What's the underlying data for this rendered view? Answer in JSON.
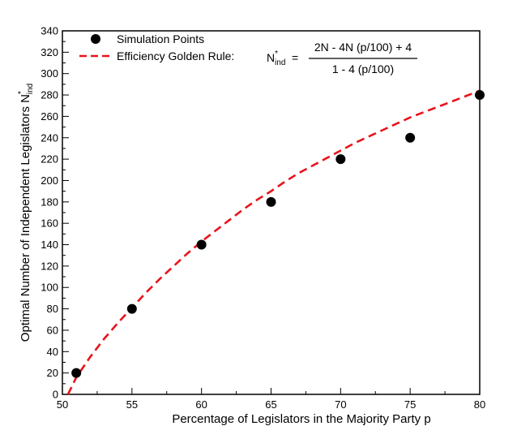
{
  "chart_data": {
    "type": "scatter",
    "xlabel": "Percentage of Legislators in the Majority Party p",
    "ylabel_main": "Optimal Number of Independent Legislators N",
    "ylabel_sup": "*",
    "ylabel_sub": "ind",
    "xlim": [
      50,
      80
    ],
    "ylim": [
      0,
      340
    ],
    "xticks": [
      50,
      55,
      60,
      65,
      70,
      75,
      80
    ],
    "yticks": [
      0,
      20,
      40,
      60,
      80,
      100,
      120,
      140,
      160,
      180,
      200,
      220,
      240,
      260,
      280,
      300,
      320,
      340
    ],
    "grid": false,
    "legend_position": "top-left",
    "series": [
      {
        "name": "Simulation Points",
        "kind": "scatter",
        "color": "#000000",
        "x": [
          51,
          55,
          60,
          65,
          70,
          75,
          80
        ],
        "y": [
          20,
          80,
          140,
          180,
          220,
          240,
          280
        ]
      },
      {
        "name": "Efficiency Golden Rule:",
        "kind": "line",
        "style": "dashed",
        "color": "#e8141c",
        "x": [
          50.4,
          51,
          52,
          53,
          54,
          55,
          56,
          57,
          58,
          59,
          60,
          61,
          62,
          63,
          64,
          65,
          66,
          67,
          68,
          69,
          70,
          71,
          72,
          73,
          74,
          75,
          76,
          77,
          78,
          79,
          80
        ],
        "y": [
          0,
          16,
          35,
          52,
          67,
          81,
          95,
          108,
          120,
          132,
          143,
          153,
          163,
          173,
          182,
          190,
          199,
          207,
          214,
          221,
          228,
          235,
          241,
          247,
          253,
          259,
          264,
          269,
          274,
          279,
          284
        ]
      }
    ],
    "formula": {
      "lhs_main": "N",
      "lhs_sup": "*",
      "lhs_sub": "ind",
      "equals": "=",
      "numerator": "2N - 4N (p/100) + 4",
      "denominator": "1 - 4 (p/100)"
    }
  }
}
